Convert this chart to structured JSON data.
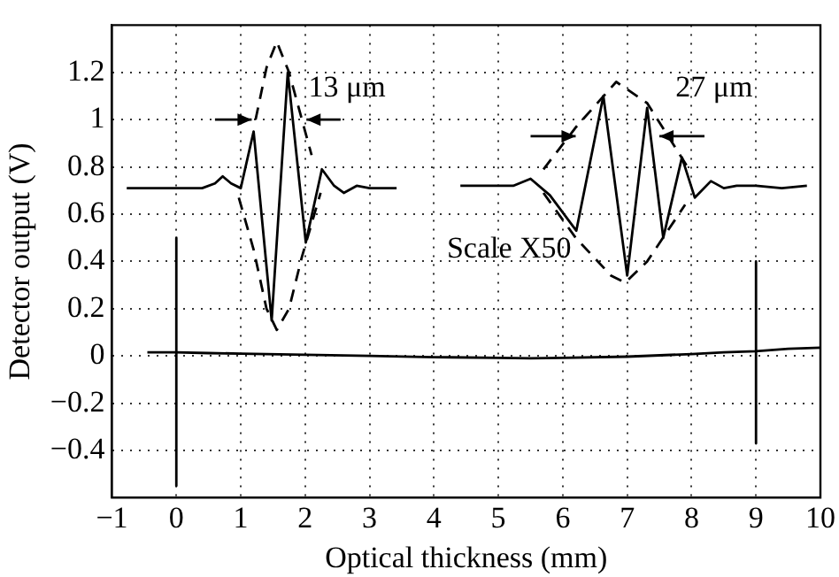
{
  "chart_data": {
    "type": "line",
    "xlabel": "Optical thickness (mm)",
    "ylabel": "Detector output (V)",
    "xlim": [
      -1,
      10
    ],
    "xticks": [
      -1,
      0,
      1,
      2,
      3,
      4,
      5,
      6,
      7,
      8,
      9,
      10
    ],
    "ylim": [
      -0.6,
      1.4
    ],
    "yticks": [
      -0.4,
      -0.2,
      0,
      0.2,
      0.4,
      0.6,
      0.8,
      1,
      1.2
    ],
    "grid": true,
    "legend": false,
    "marker": "none",
    "annotations": [
      "13 μm",
      "27 μm",
      "Scale X50"
    ],
    "series": [
      {
        "color": "#000000",
        "line_style": "solid",
        "x": [
          -0.45,
          -0.2,
          0,
          0.5,
          1,
          2,
          3,
          4,
          5,
          5.5,
          6,
          7,
          8,
          8.5,
          9,
          9.5,
          10
        ],
        "values": [
          0.015,
          0.015,
          0.015,
          0.012,
          0.01,
          0.005,
          0,
          -0.005,
          -0.008,
          -0.01,
          -0.008,
          -0.003,
          0.008,
          0.015,
          0.02,
          0.03,
          0.035
        ]
      },
      {
        "color": "#000000",
        "line_style": "solid",
        "x": [
          0,
          0
        ],
        "values": [
          0.5,
          -0.55
        ]
      },
      {
        "color": "#000000",
        "line_style": "solid",
        "x": [
          9,
          9
        ],
        "values": [
          0.4,
          -0.37
        ]
      },
      {
        "color": "#000000",
        "line_style": "solid",
        "x": [
          -0.77,
          0.4,
          0.6,
          0.72,
          0.85,
          1.0,
          1.2,
          1.48,
          1.73,
          2.01,
          2.26,
          2.45,
          2.6,
          2.8,
          3.0,
          3.42
        ],
        "values": [
          0.71,
          0.71,
          0.73,
          0.76,
          0.73,
          0.71,
          0.95,
          0.15,
          1.2,
          0.48,
          0.79,
          0.72,
          0.69,
          0.72,
          0.71,
          0.71
        ]
      },
      {
        "color": "#000000",
        "line_style": "dashed",
        "x": [
          1.23,
          1.4,
          1.56,
          1.75,
          1.9,
          2.1
        ],
        "values": [
          1.0,
          1.22,
          1.33,
          1.2,
          1.05,
          0.85
        ]
      },
      {
        "color": "#000000",
        "line_style": "dashed",
        "x": [
          0.97,
          1.2,
          1.4,
          1.56,
          1.75,
          1.95,
          2.24
        ],
        "values": [
          0.67,
          0.45,
          0.2,
          0.11,
          0.2,
          0.42,
          0.69
        ]
      },
      {
        "color": "#000000",
        "line_style": "solid",
        "x": [
          4.41,
          5.0,
          5.23,
          5.5,
          5.8,
          6.21,
          6.63,
          7.0,
          7.31,
          7.56,
          7.85,
          8.05,
          8.3,
          8.5,
          8.7,
          9.0,
          9.4,
          9.79
        ],
        "values": [
          0.72,
          0.72,
          0.72,
          0.75,
          0.68,
          0.53,
          1.1,
          0.34,
          1.05,
          0.5,
          0.84,
          0.67,
          0.74,
          0.71,
          0.72,
          0.72,
          0.71,
          0.72
        ]
      },
      {
        "color": "#000000",
        "line_style": "dashed",
        "x": [
          5.7,
          6.21,
          6.83,
          7.31,
          7.96
        ],
        "values": [
          0.79,
          0.97,
          1.16,
          1.07,
          0.79
        ]
      },
      {
        "color": "#000000",
        "line_style": "dashed",
        "x": [
          5.7,
          6.2,
          6.75,
          6.97,
          7.31,
          7.9
        ],
        "values": [
          0.69,
          0.5,
          0.34,
          0.31,
          0.4,
          0.64
        ]
      }
    ]
  }
}
